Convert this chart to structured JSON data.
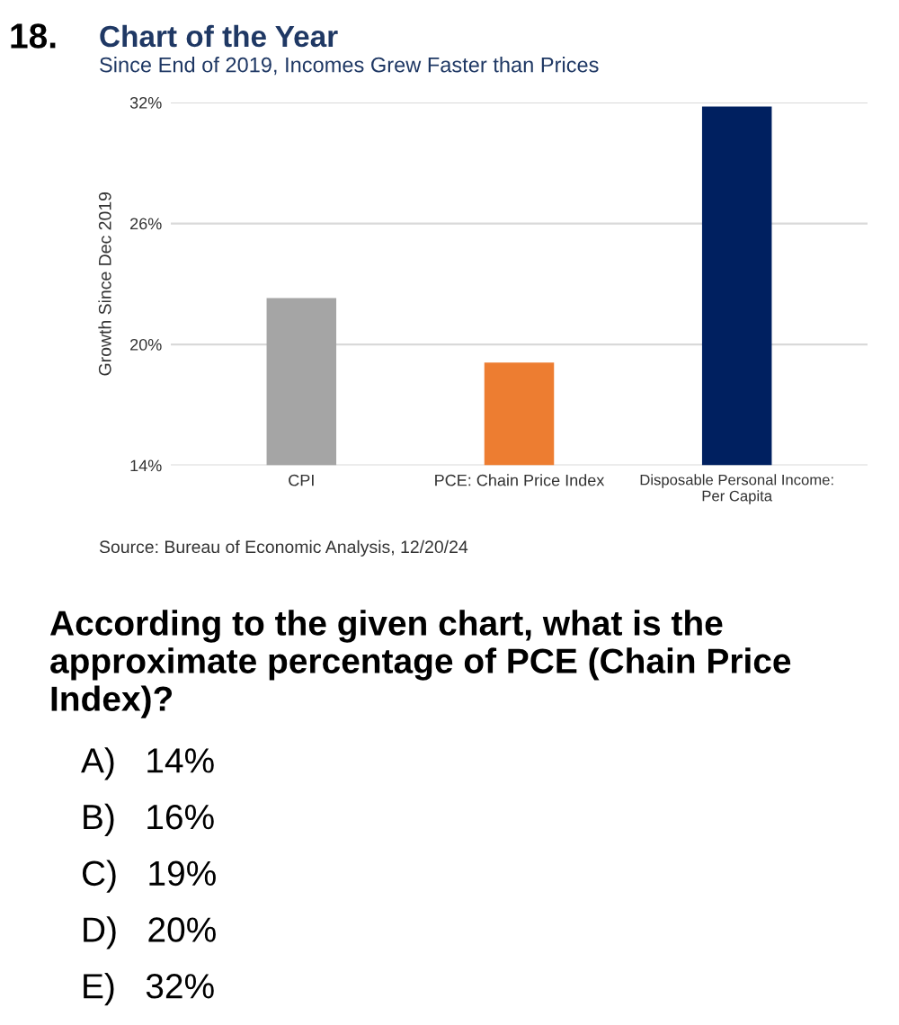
{
  "chart_data": {
    "type": "bar",
    "title": "Chart of the Year",
    "subtitle": "Since End of 2019, Incomes Grew Faster than Prices",
    "ylabel": "Growth Since Dec 2019",
    "categories": [
      "CPI",
      "PCE: Chain Price Index",
      "Disposable Personal Income:\nPer Capita"
    ],
    "values": [
      22.3,
      19.1,
      31.8
    ],
    "colors": [
      "#a5a5a5",
      "#ed7d31",
      "#002060"
    ],
    "ylim": [
      14,
      32
    ],
    "yticks": [
      {
        "value": 14,
        "label": "14%"
      },
      {
        "value": 20,
        "label": "20%"
      },
      {
        "value": 26,
        "label": "26%"
      },
      {
        "value": 32,
        "label": "32%"
      }
    ],
    "grid": "y",
    "annotations": [
      "18.",
      "Source: Bureau of Economic Analysis, 12/20/24",
      "According to the given chart, what is the approximate percentage of PCE (Chain Price Index)?",
      "A)   14%",
      "B)   16%",
      "C)   19%",
      "D)   20%",
      "E)   32%"
    ]
  }
}
